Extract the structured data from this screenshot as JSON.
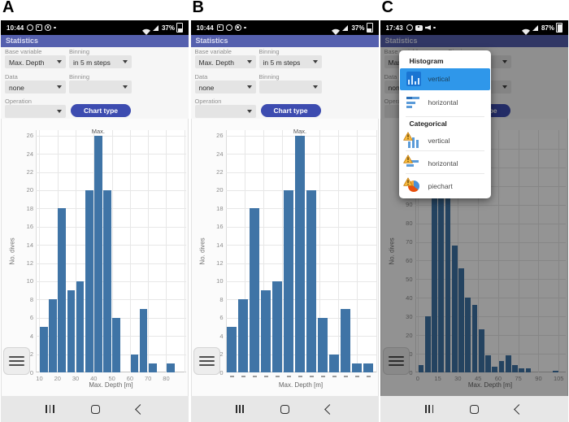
{
  "colors": {
    "app_header_bg": "#5560ae",
    "status_bar_bg": "#000000",
    "chart_type_button_bg": "#3d4cb0",
    "bar_color": "#3f74a6",
    "menu_highlight": "#2f97ea",
    "dropdown_bg": "#e4e4e4",
    "nav_bar_bg": "#e7e7e7",
    "warning_icon_color": "#f6b93d"
  },
  "panels": [
    {
      "label": "A",
      "status": {
        "time": "10:44",
        "battery": "37%",
        "left_icons": [
          "whatsapp",
          "gallery",
          "chrome",
          "dot"
        ]
      },
      "header": "Statistics",
      "form": {
        "base_variable_label": "Base variable",
        "base_variable_value": "Max. Depth",
        "binning1_label": "Binning",
        "binning1_value": "in 5 m steps",
        "data_label": "Data",
        "data_value": "none",
        "binning2_label": "Binning",
        "binning2_value": "",
        "operation_label": "Operation",
        "operation_value": "",
        "chart_type_button": "Chart type"
      }
    },
    {
      "label": "B",
      "status": {
        "time": "10:44",
        "battery": "37%",
        "left_icons": [
          "gallery",
          "whatsapp",
          "chrome",
          "dot"
        ]
      },
      "header": "Statistics",
      "form": {
        "base_variable_label": "Base variable",
        "base_variable_value": "Max. Depth",
        "binning1_label": "Binning",
        "binning1_value": "in 5 m steps",
        "data_label": "Data",
        "data_value": "none",
        "binning2_label": "Binning",
        "binning2_value": "",
        "operation_label": "Operation",
        "operation_value": "",
        "chart_type_button": "Chart type"
      }
    },
    {
      "label": "C",
      "status": {
        "time": "17:43",
        "battery": "87%",
        "left_icons": [
          "whatsapp",
          "youtube",
          "speaker",
          "dot"
        ]
      },
      "header": "Statistics",
      "form": {
        "base_variable_label": "Base variable",
        "base_variable_value": "Max. Depth",
        "binning1_label": "Binning",
        "binning1_value": "in 5 m steps",
        "data_label": "Data",
        "data_value": "none",
        "binning2_label": "Binning",
        "binning2_value": "",
        "operation_label": "Operation",
        "operation_value": "",
        "chart_type_button": "Chart type"
      }
    }
  ],
  "popup": {
    "sections": [
      {
        "header": "Histogram",
        "items": [
          {
            "label": "vertical",
            "icon": "histogram-vertical-icon",
            "selected": true
          },
          {
            "label": "horizontal",
            "icon": "histogram-horizontal-icon",
            "selected": false
          }
        ]
      },
      {
        "header": "Categorical",
        "items": [
          {
            "label": "vertical",
            "icon": "categorical-vertical-icon",
            "warning": true
          },
          {
            "label": "horizontal",
            "icon": "categorical-horizontal-icon",
            "warning": true
          },
          {
            "label": "piechart",
            "icon": "categorical-piechart-icon",
            "warning": true
          }
        ]
      }
    ]
  },
  "chart_data": [
    {
      "type": "bar",
      "panel": "A",
      "ylabel": "No. dives",
      "xlabel": "Max. Depth [m]",
      "annotation": "Max.",
      "bin_start": 10,
      "bin_width": 5,
      "values": [
        5,
        8,
        18,
        9,
        10,
        20,
        26,
        20,
        6,
        0,
        2,
        7,
        1,
        0,
        1
      ],
      "xticks": [
        10,
        20,
        30,
        40,
        50,
        60,
        70,
        80
      ],
      "yticks": [
        0,
        2,
        4,
        6,
        8,
        10,
        12,
        14,
        16,
        18,
        20,
        22,
        24,
        26
      ],
      "xlim": [
        8,
        91
      ],
      "ylim": [
        0,
        26.6
      ],
      "grid": true
    },
    {
      "type": "bar",
      "panel": "B",
      "ylabel": "No. dives",
      "xlabel": "Max. Depth [m]",
      "annotation": "Max.",
      "values": [
        5,
        8,
        18,
        9,
        10,
        20,
        26,
        20,
        6,
        2,
        7,
        1,
        1
      ],
      "yticks": [
        0,
        2,
        4,
        6,
        8,
        10,
        12,
        14,
        16,
        18,
        20,
        22,
        24,
        26
      ],
      "ylim": [
        0,
        26.6
      ],
      "grid": true,
      "empty_bins_omitted": true,
      "xticks_note": "13 tiny dash marks under bars, bin labels too small to read"
    },
    {
      "type": "bar",
      "panel": "C",
      "ylabel": "No. dives",
      "xlabel": "Max. Depth [m]",
      "bin_start": 0,
      "bin_width": 5,
      "values": [
        4,
        30,
        100,
        120,
        100,
        68,
        56,
        40,
        36,
        23,
        9,
        3,
        6,
        9,
        4,
        2,
        2,
        0,
        0,
        0,
        1
      ],
      "xticks": [
        0,
        15,
        30,
        45,
        60,
        75,
        90,
        105
      ],
      "yticks": [
        0,
        10,
        20,
        30,
        40,
        50,
        60,
        70,
        80,
        90
      ],
      "xlim": [
        -2,
        110
      ],
      "ylim": [
        0,
        130
      ],
      "grid": true,
      "dimmed_by_menu": true,
      "values_note": "bars for 10-25 m occluded by open menu; heights estimated"
    }
  ]
}
